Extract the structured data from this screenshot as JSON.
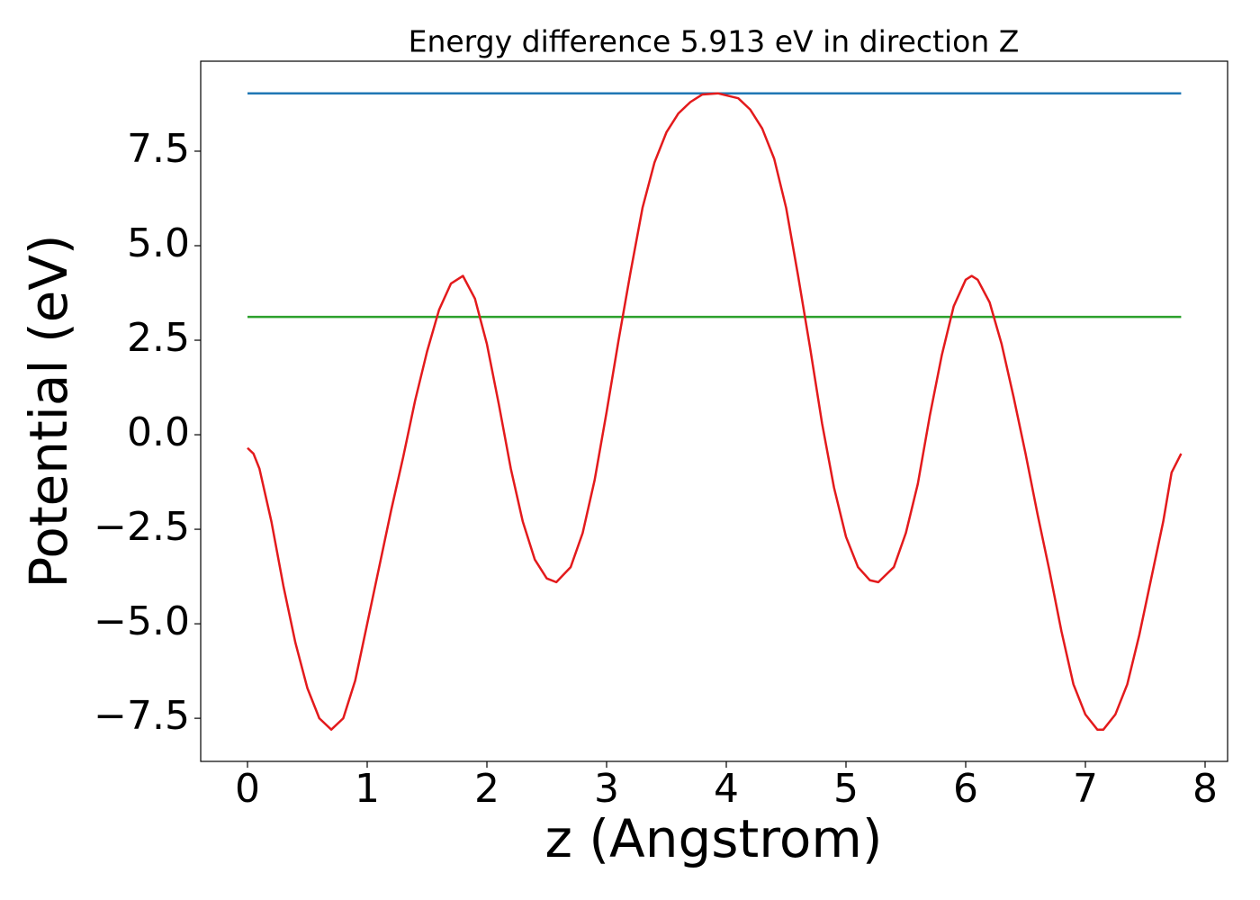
{
  "chart_data": {
    "type": "line",
    "title": "Energy difference 5.913 eV in direction Z",
    "x_label": "z (Angstrom)",
    "y_label": "Potential (eV)",
    "xlim": [
      -0.391,
      8.188
    ],
    "ylim": [
      -8.64,
      9.88
    ],
    "xticks": [
      0,
      1,
      2,
      3,
      4,
      5,
      6,
      7,
      8
    ],
    "yticks": [
      {
        "value": -7.5,
        "label": "−7.5"
      },
      {
        "value": -5,
        "label": "−5.0"
      },
      {
        "value": -2.5,
        "label": "−2.5"
      },
      {
        "value": 0,
        "label": "0.0"
      },
      2.5,
      {
        "value": 5,
        "label": "5.0"
      },
      7.5
    ],
    "series": [
      {
        "color": "#1f77b4",
        "x": [
          0,
          7.8
        ],
        "values": [
          9.03,
          9.03
        ]
      },
      {
        "color": "#2ca02c",
        "x": [
          0,
          7.8
        ],
        "values": [
          3.117,
          3.117
        ]
      },
      {
        "color": "#e31a1c",
        "x": [
          0,
          0.05,
          0.1,
          0.2,
          0.3,
          0.4,
          0.5,
          0.6,
          0.7,
          0.8,
          0.9,
          1.0,
          1.1,
          1.2,
          1.3,
          1.4,
          1.5,
          1.6,
          1.7,
          1.8,
          1.9,
          2.0,
          2.1,
          2.2,
          2.3,
          2.4,
          2.5,
          2.58,
          2.7,
          2.8,
          2.9,
          3.0,
          3.1,
          3.2,
          3.3,
          3.4,
          3.5,
          3.6,
          3.7,
          3.8,
          3.93,
          4.1,
          4.2,
          4.3,
          4.4,
          4.5,
          4.6,
          4.7,
          4.8,
          4.9,
          5.0,
          5.1,
          5.2,
          5.27,
          5.4,
          5.5,
          5.6,
          5.7,
          5.8,
          5.9,
          6.0,
          6.05,
          6.1,
          6.2,
          6.3,
          6.4,
          6.5,
          6.6,
          6.7,
          6.8,
          6.9,
          7.0,
          7.1,
          7.15,
          7.25,
          7.35,
          7.45,
          7.55,
          7.65,
          7.72,
          7.8
        ],
        "values": [
          -0.35,
          -0.5,
          -0.9,
          -2.3,
          -4.0,
          -5.5,
          -6.7,
          -7.5,
          -7.8,
          -7.5,
          -6.5,
          -5.0,
          -3.5,
          -2.0,
          -0.6,
          0.9,
          2.2,
          3.3,
          4.0,
          4.2,
          3.6,
          2.4,
          0.8,
          -0.9,
          -2.3,
          -3.3,
          -3.8,
          -3.9,
          -3.5,
          -2.6,
          -1.2,
          0.6,
          2.5,
          4.3,
          6.0,
          7.2,
          8.0,
          8.5,
          8.8,
          9.0,
          9.03,
          8.9,
          8.6,
          8.1,
          7.3,
          6.0,
          4.2,
          2.3,
          0.3,
          -1.4,
          -2.7,
          -3.5,
          -3.85,
          -3.9,
          -3.5,
          -2.6,
          -1.3,
          0.5,
          2.1,
          3.4,
          4.1,
          4.2,
          4.1,
          3.5,
          2.4,
          1.0,
          -0.5,
          -2.1,
          -3.6,
          -5.2,
          -6.6,
          -7.4,
          -7.8,
          -7.8,
          -7.4,
          -6.6,
          -5.3,
          -3.8,
          -2.3,
          -1.0,
          -0.5
        ]
      }
    ]
  }
}
